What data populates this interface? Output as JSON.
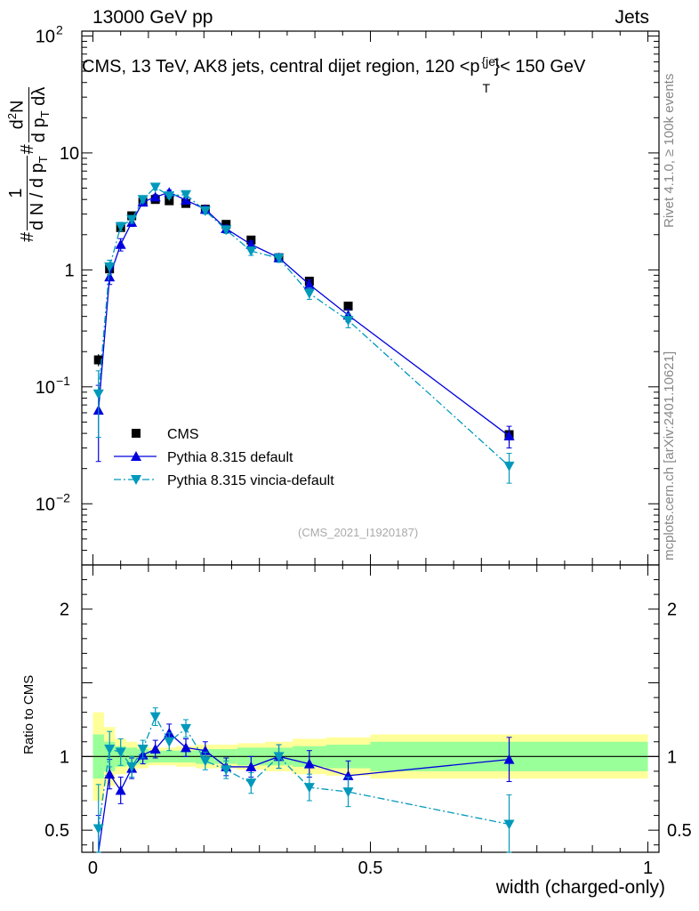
{
  "header": {
    "top_left": "13000 GeV pp",
    "top_right": "Jets"
  },
  "side": {
    "rivet": "Rivet 4.1.0, ≥ 100k events",
    "mcplots": "mcplots.cern.ch [arXiv:2401.10621]"
  },
  "chart_data": {
    "type": "scatter",
    "title": "CMS, 13 TeV, AK8 jets, central dijet region, 120 < p_T^{jet} < 150 GeV",
    "title_parts": {
      "main": "CMS, 13 TeV, AK8 jets, central dijet region, 120 <p",
      "sub": "T",
      "sup": "{jet",
      "tail": "}< 150 GeV"
    },
    "watermark": "(CMS_2021_I1920187)",
    "ylabel": "1/dN/dp_T  d²N/dp_T dλ",
    "ylabel_parts": {
      "a": "#",
      "b": "1",
      "c": "d N / d p",
      "d": "T",
      "e": "#",
      "f": "d",
      "g": "2",
      "h": "N",
      "i": "d p",
      "j": "T",
      "k": "dλ"
    },
    "xlabel": "width (charged-only)",
    "ratio_ylabel": "Ratio to CMS",
    "xlim": [
      -0.02,
      1.02
    ],
    "ylim_main": [
      0.003,
      110
    ],
    "ylim_ratio": [
      0.35,
      2.3
    ],
    "x_ticks": [
      "0",
      "0.5",
      "1"
    ],
    "y_ticks_main": [
      {
        "v": 100,
        "label": "10",
        "exp": "2"
      },
      {
        "v": 10,
        "label": "10",
        "exp": ""
      },
      {
        "v": 1,
        "label": "1",
        "exp": ""
      },
      {
        "v": 0.1,
        "label": "10",
        "exp": "−1"
      },
      {
        "v": 0.01,
        "label": "10",
        "exp": "−2"
      }
    ],
    "y_ticks_ratio": [
      {
        "v": 2,
        "label": "2"
      },
      {
        "v": 1,
        "label": "1"
      },
      {
        "v": 0.5,
        "label": "0.5"
      }
    ],
    "bins": [
      [
        0.0,
        0.02
      ],
      [
        0.02,
        0.04
      ],
      [
        0.04,
        0.06
      ],
      [
        0.06,
        0.08
      ],
      [
        0.08,
        0.1
      ],
      [
        0.1,
        0.125
      ],
      [
        0.125,
        0.15
      ],
      [
        0.15,
        0.185
      ],
      [
        0.185,
        0.22
      ],
      [
        0.22,
        0.26
      ],
      [
        0.26,
        0.31
      ],
      [
        0.31,
        0.36
      ],
      [
        0.36,
        0.42
      ],
      [
        0.42,
        0.5
      ],
      [
        0.5,
        1.0
      ]
    ],
    "x": [
      0.01,
      0.03,
      0.05,
      0.07,
      0.09,
      0.1125,
      0.1375,
      0.1675,
      0.2025,
      0.24,
      0.285,
      0.335,
      0.39,
      0.46,
      0.75
    ],
    "band_inner": [
      0.15,
      0.1,
      0.07,
      0.06,
      0.05,
      0.04,
      0.04,
      0.04,
      0.05,
      0.05,
      0.06,
      0.06,
      0.07,
      0.08,
      0.1
    ],
    "band_outer": [
      0.3,
      0.2,
      0.12,
      0.1,
      0.08,
      0.06,
      0.06,
      0.07,
      0.08,
      0.08,
      0.09,
      0.1,
      0.12,
      0.13,
      0.15
    ],
    "series": [
      {
        "name": "CMS",
        "color": "#000000",
        "marker": "square",
        "values": [
          0.17,
          1.02,
          2.3,
          2.9,
          3.8,
          4.0,
          3.9,
          3.7,
          3.3,
          2.45,
          1.8,
          1.27,
          0.8,
          0.49,
          0.039
        ],
        "errors": [
          0.02,
          0.1,
          0.15,
          0.15,
          0.15,
          0.15,
          0.15,
          0.15,
          0.15,
          0.12,
          0.1,
          0.08,
          0.06,
          0.04,
          0.006
        ]
      },
      {
        "name": "Pythia 8.315 default",
        "color": "#0000dd",
        "marker": "triangle-up",
        "line": "solid",
        "values": [
          0.063,
          0.87,
          1.65,
          2.55,
          3.8,
          4.2,
          4.6,
          3.95,
          3.3,
          2.25,
          1.65,
          1.27,
          0.75,
          0.41,
          0.038
        ],
        "errors": [
          0.04,
          0.12,
          0.2,
          0.2,
          0.2,
          0.2,
          0.2,
          0.2,
          0.2,
          0.15,
          0.12,
          0.1,
          0.07,
          0.05,
          0.008
        ],
        "ratio": [
          0.35,
          0.88,
          0.77,
          0.92,
          1.01,
          1.05,
          1.16,
          1.06,
          1.04,
          0.93,
          0.93,
          1.0,
          0.95,
          0.87,
          0.98
        ],
        "ratio_errors": [
          0.25,
          0.1,
          0.09,
          0.07,
          0.06,
          0.06,
          0.06,
          0.06,
          0.06,
          0.06,
          0.07,
          0.08,
          0.09,
          0.1,
          0.15
        ]
      },
      {
        "name": "Pythia 8.315 vincia-default",
        "color": "#0099bb",
        "marker": "triangle-down",
        "line": "dashdot",
        "values": [
          0.087,
          1.06,
          2.35,
          2.7,
          4.0,
          5.1,
          4.3,
          4.4,
          3.2,
          2.2,
          1.45,
          1.26,
          0.63,
          0.37,
          0.021
        ],
        "errors": [
          0.05,
          0.15,
          0.2,
          0.2,
          0.2,
          0.25,
          0.2,
          0.2,
          0.2,
          0.15,
          0.12,
          0.1,
          0.07,
          0.05,
          0.006
        ],
        "ratio": [
          0.51,
          1.05,
          1.03,
          0.93,
          1.05,
          1.27,
          1.1,
          1.19,
          0.97,
          0.91,
          0.82,
          1.0,
          0.79,
          0.76,
          0.54
        ],
        "ratio_errors": [
          0.3,
          0.12,
          0.09,
          0.07,
          0.06,
          0.06,
          0.06,
          0.06,
          0.06,
          0.06,
          0.07,
          0.08,
          0.09,
          0.1,
          0.2
        ]
      }
    ],
    "legend": {
      "position": "lower-left"
    }
  }
}
